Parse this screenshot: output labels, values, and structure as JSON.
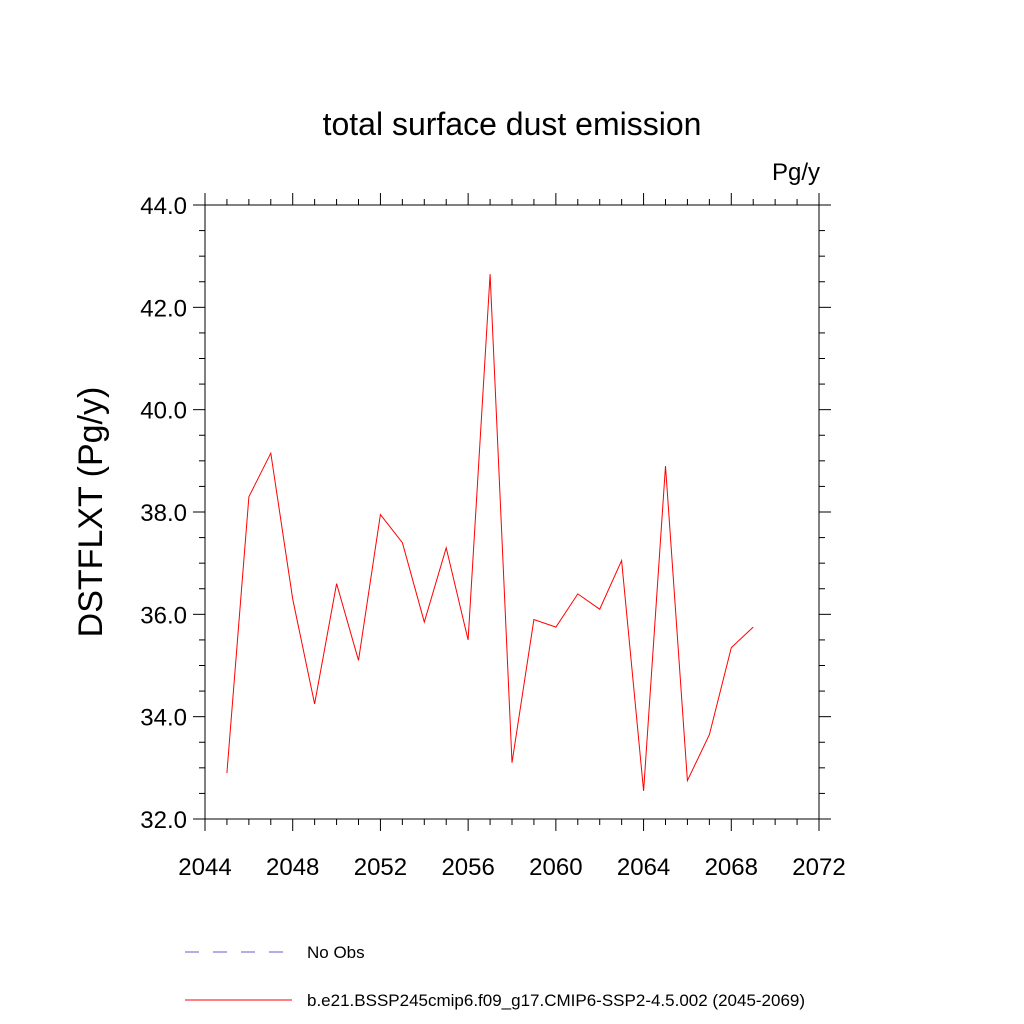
{
  "chart_data": {
    "type": "line",
    "title": "total surface dust emission",
    "units_label": "Pg/y",
    "ylabel": "DSTFLXT  (Pg/y)",
    "xlabel": "",
    "xlim": [
      2044,
      2072
    ],
    "ylim": [
      32.0,
      44.0
    ],
    "x_ticks": [
      "2044",
      "2048",
      "2052",
      "2056",
      "2060",
      "2064",
      "2068",
      "2072"
    ],
    "y_ticks": [
      "32.0",
      "34.0",
      "36.0",
      "38.0",
      "40.0",
      "42.0",
      "44.0"
    ],
    "grid": false,
    "legend_position": "bottom",
    "series": [
      {
        "name": "b.e21.BSSP245cmip6.f09_g17.CMIP6-SSP2-4.5.002 (2045-2069)",
        "color": "#ff0000",
        "x": [
          2045,
          2046,
          2047,
          2048,
          2049,
          2050,
          2051,
          2052,
          2053,
          2054,
          2055,
          2056,
          2057,
          2058,
          2059,
          2060,
          2061,
          2062,
          2063,
          2064,
          2065,
          2066,
          2067,
          2068,
          2069
        ],
        "y": [
          32.9,
          38.3,
          39.15,
          36.3,
          34.25,
          36.6,
          35.1,
          37.95,
          37.4,
          35.85,
          37.3,
          35.5,
          42.65,
          33.1,
          35.9,
          35.75,
          36.4,
          36.1,
          37.05,
          32.55,
          38.9,
          32.75,
          33.65,
          35.35,
          35.75
        ]
      }
    ],
    "legend": [
      {
        "label": "No Obs",
        "color": "#6a5acd",
        "style": "dashed"
      },
      {
        "label": "b.e21.BSSP245cmip6.f09_g17.CMIP6-SSP2-4.5.002 (2045-2069)",
        "color": "#ff0000",
        "style": "solid"
      }
    ]
  }
}
